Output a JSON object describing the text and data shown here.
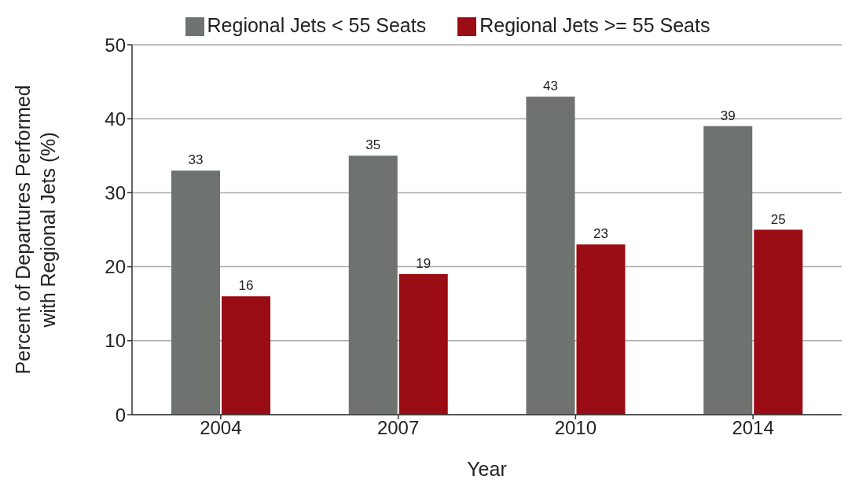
{
  "chart_data": {
    "type": "bar",
    "categories": [
      "2004",
      "2007",
      "2010",
      "2014"
    ],
    "series": [
      {
        "name": "Regional Jets < 55 Seats",
        "color": "#6f7370",
        "values": [
          33,
          35,
          43,
          39
        ]
      },
      {
        "name": "Regional Jets >= 55 Seats",
        "color": "#9b0d14",
        "values": [
          16,
          19,
          23,
          25
        ]
      }
    ],
    "xlabel": "Year",
    "ylabel": "Percent of Departures  Performed\nwith Regional Jets (%)",
    "ylim": [
      0,
      50
    ],
    "yticks": [
      0,
      10,
      20,
      30,
      40,
      50
    ],
    "grid": "y",
    "legend": "top",
    "data_labels": true
  }
}
